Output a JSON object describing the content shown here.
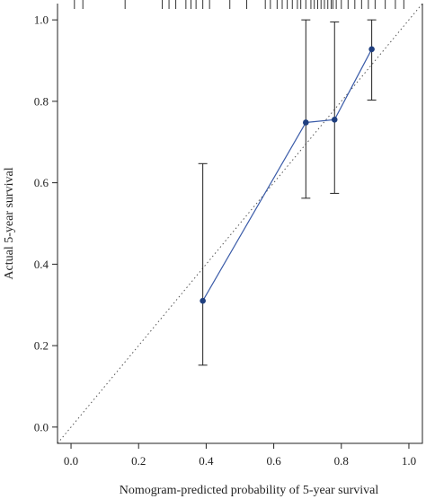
{
  "chart_data": {
    "type": "line",
    "title": "",
    "xlabel": "Nomogram-predicted probability of 5-year survival",
    "ylabel": "Actual 5-year survival",
    "xlim": [
      -0.04,
      1.04
    ],
    "ylim": [
      -0.04,
      1.04
    ],
    "x_ticks": [
      0.0,
      0.2,
      0.4,
      0.6,
      0.8,
      1.0
    ],
    "x_tick_labels": [
      "0.0",
      "0.2",
      "0.4",
      "0.6",
      "0.8",
      "1.0"
    ],
    "y_ticks": [
      0.0,
      0.2,
      0.4,
      0.6,
      0.8,
      1.0
    ],
    "y_tick_labels": [
      "0.0",
      "0.2",
      "0.4",
      "0.6",
      "0.8",
      "1.0"
    ],
    "grid": false,
    "series": [
      {
        "x": [
          0.39,
          0.695,
          0.78,
          0.89
        ],
        "y": [
          0.31,
          0.748,
          0.755,
          0.928
        ],
        "error_low": [
          0.152,
          0.562,
          0.574,
          0.803
        ],
        "error_high": [
          0.647,
          1.0,
          0.995,
          1.0
        ],
        "color": "#3a5ba8"
      }
    ],
    "reference_line": {
      "x": [
        -0.04,
        1.04
      ],
      "y": [
        -0.04,
        1.04
      ],
      "style": "dotted",
      "color": "#555555"
    },
    "rug_x": [
      0.01,
      0.035,
      0.16,
      0.27,
      0.29,
      0.31,
      0.34,
      0.355,
      0.37,
      0.39,
      0.41,
      0.47,
      0.52,
      0.575,
      0.59,
      0.61,
      0.625,
      0.64,
      0.655,
      0.67,
      0.68,
      0.695,
      0.71,
      0.72,
      0.73,
      0.74,
      0.75,
      0.76,
      0.77,
      0.775,
      0.785,
      0.8,
      0.82,
      0.84,
      0.86,
      0.88,
      0.9,
      0.93,
      0.96,
      0.985
    ]
  }
}
